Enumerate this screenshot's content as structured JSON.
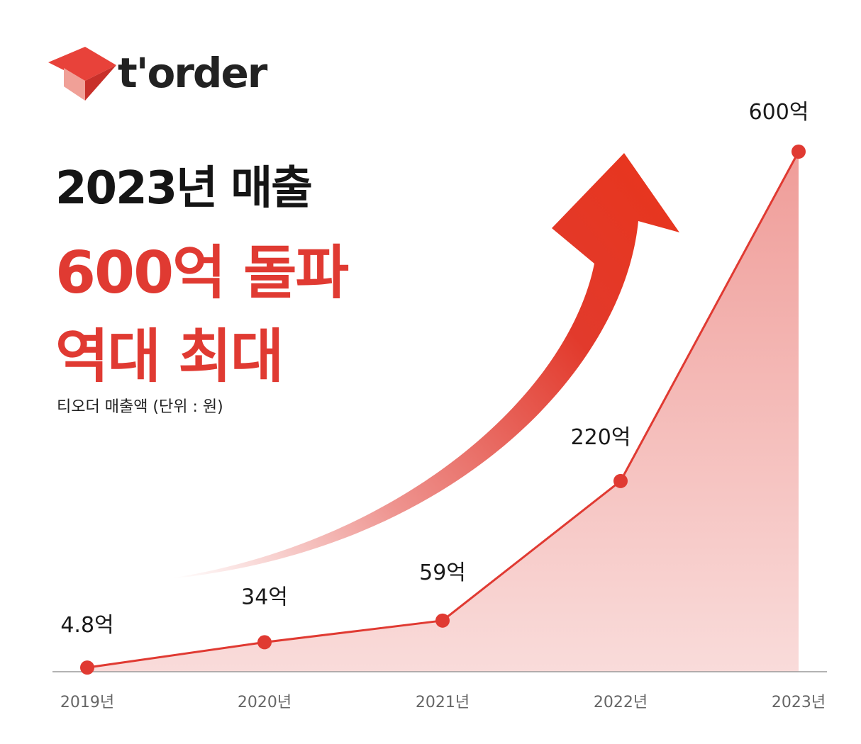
{
  "brand": {
    "name": "t'order",
    "colors": {
      "primary": "#e03a32",
      "text": "#151515"
    }
  },
  "headline": {
    "line1": "2023년 매출",
    "line2": "600억 돌파",
    "line3": "역대 최대"
  },
  "subtitle": "티오더 매출액 (단위 : 원)",
  "chart_data": {
    "type": "area",
    "x": [
      "2019년",
      "2020년",
      "2021년",
      "2022년",
      "2023년"
    ],
    "values": [
      4.8,
      34,
      59,
      220,
      600
    ],
    "value_labels": [
      "4.8억",
      "34억",
      "59억",
      "220억",
      "600억"
    ],
    "ylabel": "",
    "xlabel": "",
    "ylim": [
      0,
      600
    ],
    "grid": false,
    "legend": "none",
    "color": "#e03a32"
  }
}
